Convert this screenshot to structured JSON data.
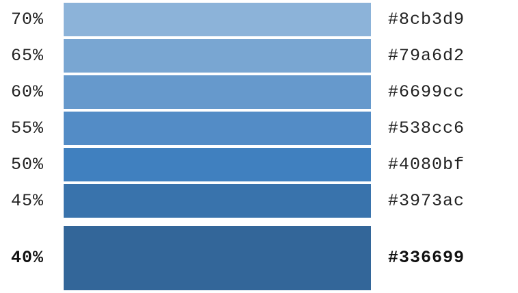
{
  "swatches": [
    {
      "percent": "70%",
      "hex": "#8cb3d9",
      "color": "#8cb3d9"
    },
    {
      "percent": "65%",
      "hex": "#79a6d2",
      "color": "#79a6d2"
    },
    {
      "percent": "60%",
      "hex": "#6699cc",
      "color": "#6699cc"
    },
    {
      "percent": "55%",
      "hex": "#538cc6",
      "color": "#538cc6"
    },
    {
      "percent": "50%",
      "hex": "#4080bf",
      "color": "#4080bf"
    },
    {
      "percent": "45%",
      "hex": "#3973ac",
      "color": "#3973ac"
    }
  ],
  "highlighted": {
    "percent": "40%",
    "hex": "#336699",
    "color": "#336699"
  }
}
